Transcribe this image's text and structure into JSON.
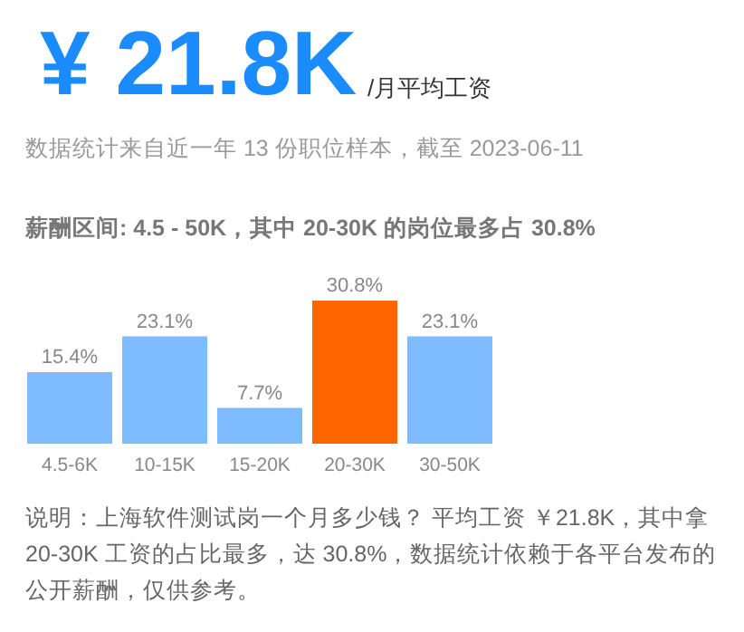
{
  "chart_data": {
    "type": "bar",
    "title": "¥ 21.8K",
    "subtitle": "/月平均工资",
    "categories": [
      "4.5-6K",
      "10-15K",
      "15-20K",
      "20-30K",
      "30-50K"
    ],
    "values": [
      15.4,
      23.1,
      7.7,
      30.8,
      23.1
    ],
    "colors": [
      "#7fbcff",
      "#7fbcff",
      "#7fbcff",
      "#ff6600",
      "#7fbcff"
    ],
    "value_labels": [
      "15.4%",
      "23.1%",
      "7.7%",
      "30.8%",
      "23.1%"
    ],
    "annotations": [
      "数据统计来自近一年 13 份职位样本，截至 2023-06-11",
      "薪酬区间: 4.5 - 50K，其中 20-30K 的岗位最多占 30.8%",
      "说明：上海软件测试岗一个月多少钱？ 平均工资 ￥21.8K，其中拿 20-30K 工资的占比最多，达 30.8%，数据统计依赖于各平台发布的公开薪酬，仅供参考。"
    ]
  }
}
